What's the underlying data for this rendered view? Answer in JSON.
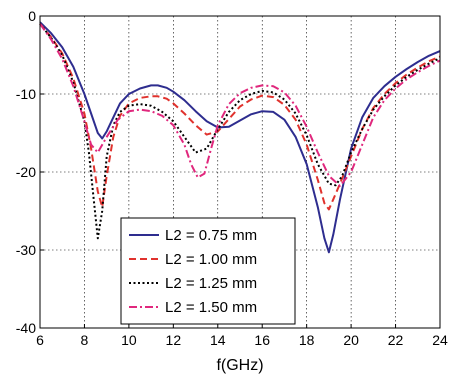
{
  "chart_data": {
    "type": "line",
    "title": "",
    "xlabel": "f(GHz)",
    "ylabel": "",
    "xlim": [
      6,
      24
    ],
    "ylim": [
      -40,
      0
    ],
    "xticks": [
      6,
      8,
      10,
      12,
      14,
      16,
      18,
      20,
      22,
      24
    ],
    "yticks": [
      0,
      -10,
      -20,
      -30,
      -40
    ],
    "grid": true,
    "legend_position": "lower-center",
    "series": [
      {
        "name": "L2 = 0.75 mm",
        "color": "#2e2d8f",
        "dash": "solid",
        "x": [
          6,
          6.5,
          7,
          7.5,
          8,
          8.3,
          8.6,
          8.8,
          9.0,
          9.3,
          9.6,
          10,
          10.5,
          11,
          11.3,
          11.7,
          12,
          12.5,
          13,
          13.5,
          14,
          14.5,
          15,
          15.5,
          16,
          16.5,
          17,
          17.5,
          18,
          18.5,
          18.8,
          19.0,
          19.2,
          19.5,
          20,
          20.5,
          21,
          21.5,
          22,
          22.5,
          23,
          23.5,
          24
        ],
        "y": [
          -0.8,
          -2.2,
          -4.0,
          -6.5,
          -10.0,
          -12.5,
          -15.0,
          -15.7,
          -14.8,
          -13.0,
          -11.2,
          -10.0,
          -9.3,
          -8.9,
          -8.9,
          -9.2,
          -9.7,
          -10.8,
          -12.2,
          -13.5,
          -14.3,
          -14.2,
          -13.4,
          -12.6,
          -12.2,
          -12.3,
          -13.3,
          -15.5,
          -19.0,
          -24.5,
          -28.5,
          -30.3,
          -28.0,
          -23.5,
          -17.0,
          -13.0,
          -10.5,
          -9.0,
          -7.8,
          -6.8,
          -5.9,
          -5.1,
          -4.5
        ]
      },
      {
        "name": "L2 = 1.00 mm",
        "color": "#e0322d",
        "dash": "dashed",
        "x": [
          6,
          6.5,
          7,
          7.5,
          8,
          8.3,
          8.6,
          8.8,
          9.0,
          9.3,
          9.6,
          10,
          10.5,
          11,
          11.3,
          11.7,
          12,
          12.5,
          13,
          13.5,
          14,
          14.5,
          15,
          15.5,
          16,
          16.5,
          17,
          17.5,
          18,
          18.5,
          18.8,
          19.0,
          19.2,
          19.5,
          20,
          20.5,
          21,
          21.5,
          22,
          22.5,
          23,
          23.5,
          24
        ],
        "y": [
          -1.0,
          -2.7,
          -4.8,
          -8.0,
          -12.5,
          -17.0,
          -22.5,
          -24.5,
          -20.5,
          -15.5,
          -12.8,
          -11.2,
          -10.5,
          -10.3,
          -10.3,
          -10.6,
          -11.2,
          -12.5,
          -14.0,
          -15.2,
          -14.8,
          -13.2,
          -11.6,
          -10.7,
          -10.2,
          -10.4,
          -11.4,
          -13.3,
          -16.5,
          -21.0,
          -24.0,
          -24.8,
          -23.5,
          -21.5,
          -18.0,
          -14.5,
          -11.8,
          -10.0,
          -8.6,
          -7.5,
          -6.6,
          -5.8,
          -5.2
        ]
      },
      {
        "name": "L2 = 1.25 mm",
        "color": "#000000",
        "dash": "dotted",
        "x": [
          6,
          6.5,
          7,
          7.5,
          8,
          8.2,
          8.4,
          8.6,
          8.8,
          9.0,
          9.3,
          9.6,
          10,
          10.5,
          11,
          11.5,
          12,
          12.5,
          13,
          13.5,
          14,
          14.5,
          15,
          15.5,
          16,
          16.5,
          17,
          17.5,
          18,
          18.5,
          19.0,
          19.3,
          19.6,
          20,
          20.5,
          21,
          21.5,
          22,
          22.5,
          23,
          23.5,
          24
        ],
        "y": [
          -1.0,
          -2.8,
          -5.0,
          -8.5,
          -13.5,
          -17.5,
          -23.0,
          -28.5,
          -25.0,
          -18.0,
          -14.0,
          -12.3,
          -11.5,
          -11.3,
          -11.5,
          -12.3,
          -13.5,
          -15.5,
          -17.5,
          -17.0,
          -14.5,
          -12.3,
          -10.8,
          -10.0,
          -9.6,
          -9.8,
          -10.7,
          -12.5,
          -15.3,
          -19.0,
          -21.5,
          -21.7,
          -20.5,
          -17.5,
          -14.5,
          -12.0,
          -10.3,
          -8.9,
          -7.8,
          -6.9,
          -6.1,
          -5.4
        ]
      },
      {
        "name": "L2 = 1.50 mm",
        "color": "#e0287d",
        "dash": "dashdot",
        "x": [
          6,
          6.5,
          7,
          7.5,
          8,
          8.3,
          8.6,
          9.0,
          9.5,
          10,
          10.5,
          11,
          11.5,
          12,
          12.5,
          12.8,
          13.1,
          13.4,
          13.7,
          14,
          14.5,
          15,
          15.5,
          16,
          16.5,
          17,
          17.5,
          18,
          18.5,
          19,
          19.5,
          20,
          20.5,
          21,
          21.5,
          22,
          22.5,
          23,
          23.5,
          24
        ],
        "y": [
          -1.0,
          -3.0,
          -5.5,
          -9.0,
          -13.5,
          -16.5,
          -17.5,
          -15.5,
          -13.3,
          -12.2,
          -12.0,
          -12.2,
          -12.8,
          -14.0,
          -16.5,
          -19.0,
          -20.7,
          -20.2,
          -17.0,
          -14.0,
          -11.3,
          -9.9,
          -9.2,
          -8.9,
          -9.0,
          -9.8,
          -11.5,
          -14.2,
          -17.5,
          -20.5,
          -21.8,
          -20.0,
          -16.5,
          -13.0,
          -10.8,
          -9.3,
          -8.1,
          -7.2,
          -6.4,
          -5.7
        ]
      }
    ]
  }
}
